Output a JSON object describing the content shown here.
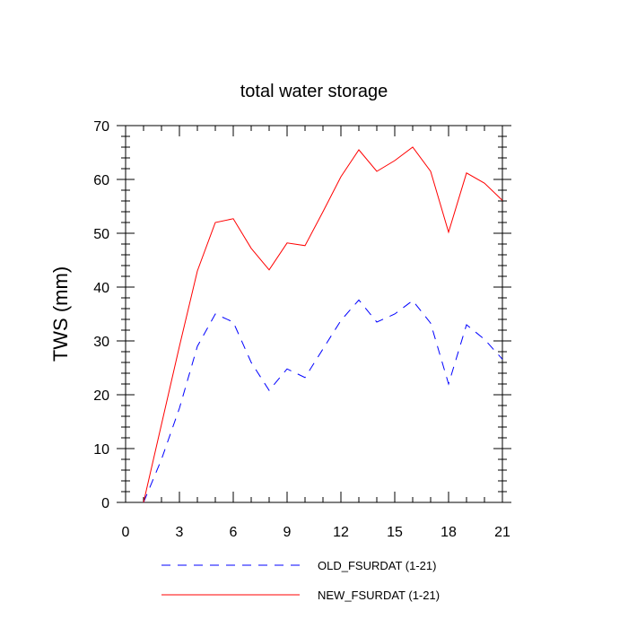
{
  "chart_data": {
    "type": "line",
    "title": "total water storage",
    "xlabel": "",
    "ylabel": "TWS  (mm)",
    "xlim": [
      0,
      21
    ],
    "ylim": [
      0,
      70
    ],
    "xticks": [
      0,
      3,
      6,
      9,
      12,
      15,
      18,
      21
    ],
    "yticks": [
      0,
      10,
      20,
      30,
      40,
      50,
      60,
      70
    ],
    "grid": false,
    "legend_position": "bottom",
    "x": [
      1,
      2,
      3,
      4,
      5,
      6,
      7,
      8,
      9,
      10,
      11,
      12,
      13,
      14,
      15,
      16,
      17,
      18,
      19,
      20,
      21
    ],
    "series": [
      {
        "name": "OLD_FSURDAT (1-21)",
        "color": "#0000ff",
        "dash": true,
        "values": [
          0,
          8,
          17.5,
          29,
          35,
          33.5,
          26,
          20.8,
          24.8,
          23.2,
          28.5,
          33.8,
          37.6,
          33.5,
          35,
          37.5,
          33.3,
          22,
          33,
          30.3,
          26.6
        ]
      },
      {
        "name": "NEW_FSURDAT (1-21)",
        "color": "#ff0000",
        "dash": false,
        "values": [
          0,
          14.5,
          29,
          43,
          52,
          52.7,
          47.2,
          43.2,
          48.2,
          47.7,
          54,
          60.5,
          65.5,
          61.5,
          63.5,
          66,
          61.5,
          50.2,
          61.2,
          59.3,
          56.1
        ]
      }
    ]
  }
}
